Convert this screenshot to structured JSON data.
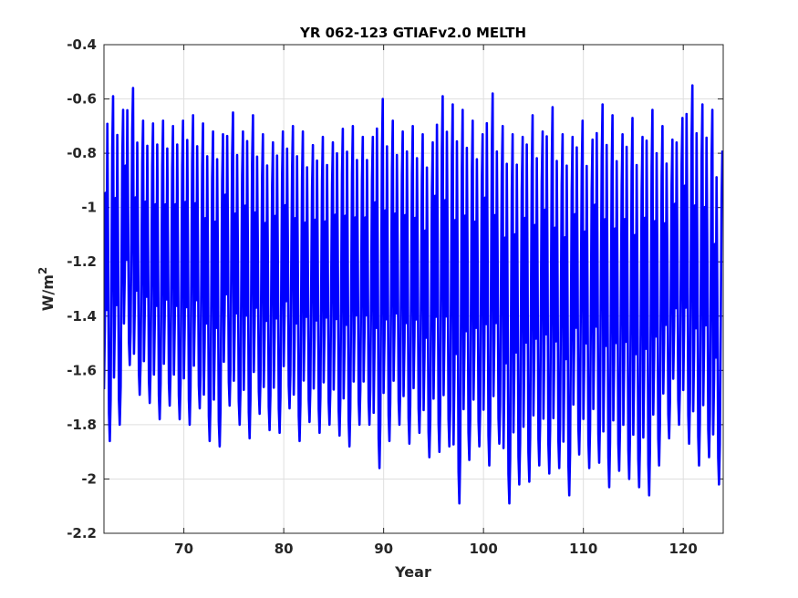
{
  "chart_data": {
    "type": "line",
    "title": "YR 062-123 GTIAFv2.0 MELTH",
    "xlabel": "Year",
    "ylabel": "W/m",
    "ylabel_superscript": "2",
    "xlim": [
      62,
      124
    ],
    "ylim": [
      -2.2,
      -0.4
    ],
    "xticks": [
      70,
      80,
      90,
      100,
      110,
      120
    ],
    "xtick_labels": [
      "70",
      "80",
      "90",
      "100",
      "110",
      "120"
    ],
    "yticks": [
      -2.2,
      -2,
      -1.8,
      -1.6,
      -1.4,
      -1.2,
      -1,
      -0.8,
      -0.6,
      -0.4
    ],
    "ytick_labels": [
      "-2.2",
      "-2",
      "-1.8",
      "-1.6",
      "-1.4",
      "-1.2",
      "-1",
      "-0.8",
      "-0.6",
      "-0.4"
    ],
    "grid": true,
    "series_color": "#0000ff",
    "sampling": "monthly",
    "annual_cycle": {
      "years": [
        62,
        63,
        64,
        65,
        66,
        67,
        68,
        69,
        70,
        71,
        72,
        73,
        74,
        75,
        76,
        77,
        78,
        79,
        80,
        81,
        82,
        83,
        84,
        85,
        86,
        87,
        88,
        89,
        90,
        91,
        92,
        93,
        94,
        95,
        96,
        97,
        98,
        99,
        100,
        101,
        102,
        103,
        104,
        105,
        106,
        107,
        108,
        109,
        110,
        111,
        112,
        113,
        114,
        115,
        116,
        117,
        118,
        119,
        120,
        121,
        122,
        123
      ],
      "max": [
        -0.59,
        -0.64,
        -0.56,
        -0.68,
        -0.69,
        -0.68,
        -0.7,
        -0.68,
        -0.66,
        -0.69,
        -0.72,
        -0.73,
        -0.65,
        -0.72,
        -0.66,
        -0.73,
        -0.76,
        -0.72,
        -0.7,
        -0.72,
        -0.77,
        -0.74,
        -0.76,
        -0.71,
        -0.7,
        -0.74,
        -0.74,
        -0.6,
        -0.68,
        -0.72,
        -0.7,
        -0.73,
        -0.76,
        -0.59,
        -0.62,
        -0.64,
        -0.68,
        -0.73,
        -0.58,
        -0.7,
        -0.73,
        -0.74,
        -0.66,
        -0.72,
        -0.63,
        -0.73,
        -0.74,
        -0.68,
        -0.75,
        -0.62,
        -0.66,
        -0.73,
        -0.67,
        -0.74,
        -0.64,
        -0.7,
        -0.75,
        -0.67,
        -0.55,
        -0.62,
        -0.64,
        -0.79
      ],
      "min": [
        -1.86,
        -1.8,
        -1.58,
        -1.69,
        -1.72,
        -1.78,
        -1.73,
        -1.78,
        -1.8,
        -1.74,
        -1.86,
        -1.88,
        -1.73,
        -1.8,
        -1.85,
        -1.76,
        -1.82,
        -1.83,
        -1.74,
        -1.86,
        -1.79,
        -1.83,
        -1.8,
        -1.84,
        -1.88,
        -1.8,
        -1.8,
        -1.96,
        -1.86,
        -1.8,
        -1.87,
        -1.83,
        -1.92,
        -1.9,
        -1.88,
        -2.09,
        -1.93,
        -1.88,
        -1.95,
        -1.87,
        -2.09,
        -2.02,
        -2.01,
        -1.95,
        -1.98,
        -1.96,
        -2.06,
        -1.91,
        -1.96,
        -1.94,
        -2.03,
        -1.97,
        -2.0,
        -2.03,
        -2.06,
        -1.95,
        -1.85,
        -1.8,
        -1.87,
        -1.95,
        -1.92,
        -2.02
      ]
    }
  }
}
